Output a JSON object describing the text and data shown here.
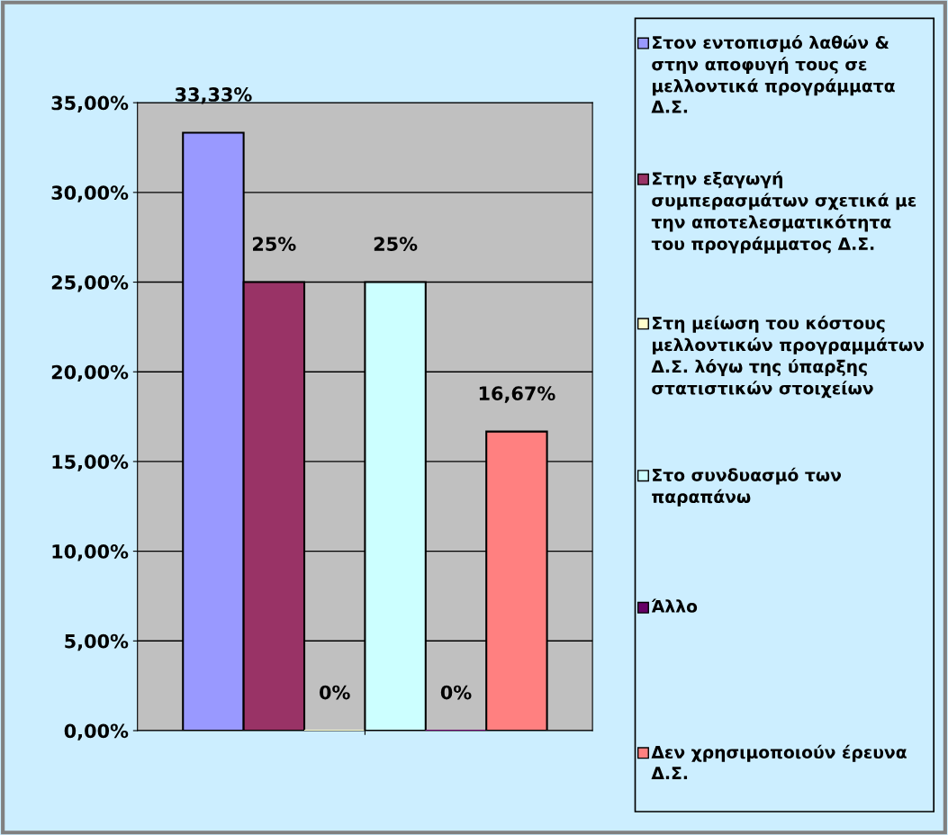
{
  "chart_data": {
    "type": "bar",
    "categories": [
      null
    ],
    "series": [
      {
        "name": "Στον εντοπισμό λαθών & στην αποφυγή τους σε μελλοντικά προγράμματα Δ.Σ.",
        "color": "#9999ff",
        "values": [
          33.33
        ],
        "value_labels": [
          "33,33%"
        ]
      },
      {
        "name": "Στην εξαγωγή συμπερασμάτων σχετικά με την αποτελεσματικότητα του προγράμματος Δ.Σ.",
        "color": "#993366",
        "values": [
          25
        ],
        "value_labels": [
          "25%"
        ]
      },
      {
        "name": "Στη μείωση του κόστους μελλοντικών προγραμμάτων Δ.Σ. λόγω της ύπαρξης στατιστικών στοιχείων",
        "color": "#ffffcc",
        "values": [
          0
        ],
        "value_labels": [
          "0%"
        ]
      },
      {
        "name": "Στο συνδυασμό των παραπάνω",
        "color": "#ccffff",
        "values": [
          25
        ],
        "value_labels": [
          "25%"
        ]
      },
      {
        "name": "Άλλο",
        "color": "#660066",
        "values": [
          0
        ],
        "value_labels": [
          "0%"
        ]
      },
      {
        "name": "Δεν χρησιμοποιούν έρευνα Δ.Σ.",
        "color": "#ff8080",
        "values": [
          16.67
        ],
        "value_labels": [
          "16,67%"
        ]
      }
    ],
    "ylim": [
      0,
      35
    ],
    "yticks": [
      {
        "value": 0,
        "label": "0,00%"
      },
      {
        "value": 5,
        "label": "5,00%"
      },
      {
        "value": 10,
        "label": "10,00%"
      },
      {
        "value": 15,
        "label": "15,00%"
      },
      {
        "value": 20,
        "label": "20,00%"
      },
      {
        "value": 25,
        "label": "25,00%"
      },
      {
        "value": 30,
        "label": "30,00%"
      },
      {
        "value": 35,
        "label": "35,00%"
      }
    ],
    "grid": "y",
    "legend": "right"
  }
}
